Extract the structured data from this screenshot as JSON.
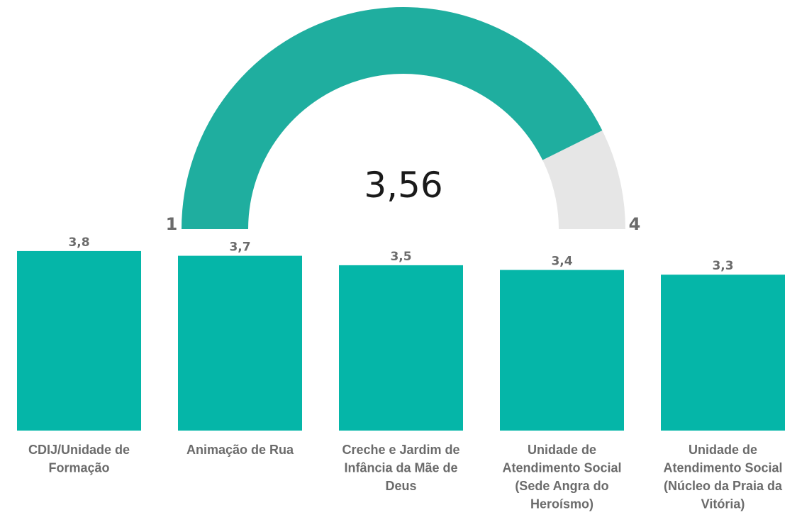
{
  "chart_data": [
    {
      "type": "gauge",
      "min": 1,
      "max": 4,
      "value": 3.56,
      "value_label": "3,56",
      "min_label": "1",
      "max_label": "4",
      "color": "#1fae9f"
    },
    {
      "type": "bar",
      "categories": [
        "CDIJ/Unidade de Formação",
        "Animação de Rua",
        "Creche e Jardim de Infância da Mãe de Deus",
        "Unidade de Atendimento Social (Sede Angra do Heroísmo)",
        "Unidade de Atendimento Social (Núcleo da Praia da Vitória)"
      ],
      "category_lines": [
        [
          "CDIJ/Unidade de",
          "Formação"
        ],
        [
          "Animação de Rua"
        ],
        [
          "Creche e Jardim de",
          "Infância da Mãe de",
          "Deus"
        ],
        [
          "Unidade de",
          "Atendimento Social",
          "(Sede Angra do",
          "Heroísmo)"
        ],
        [
          "Unidade de",
          "Atendimento Social",
          "(Núcleo da Praia da",
          "Vitória)"
        ]
      ],
      "values": [
        3.8,
        3.7,
        3.5,
        3.4,
        3.3
      ],
      "value_labels": [
        "3,8",
        "3,7",
        "3,5",
        "3,4",
        "3,3"
      ],
      "color": "#05b6a8"
    }
  ]
}
